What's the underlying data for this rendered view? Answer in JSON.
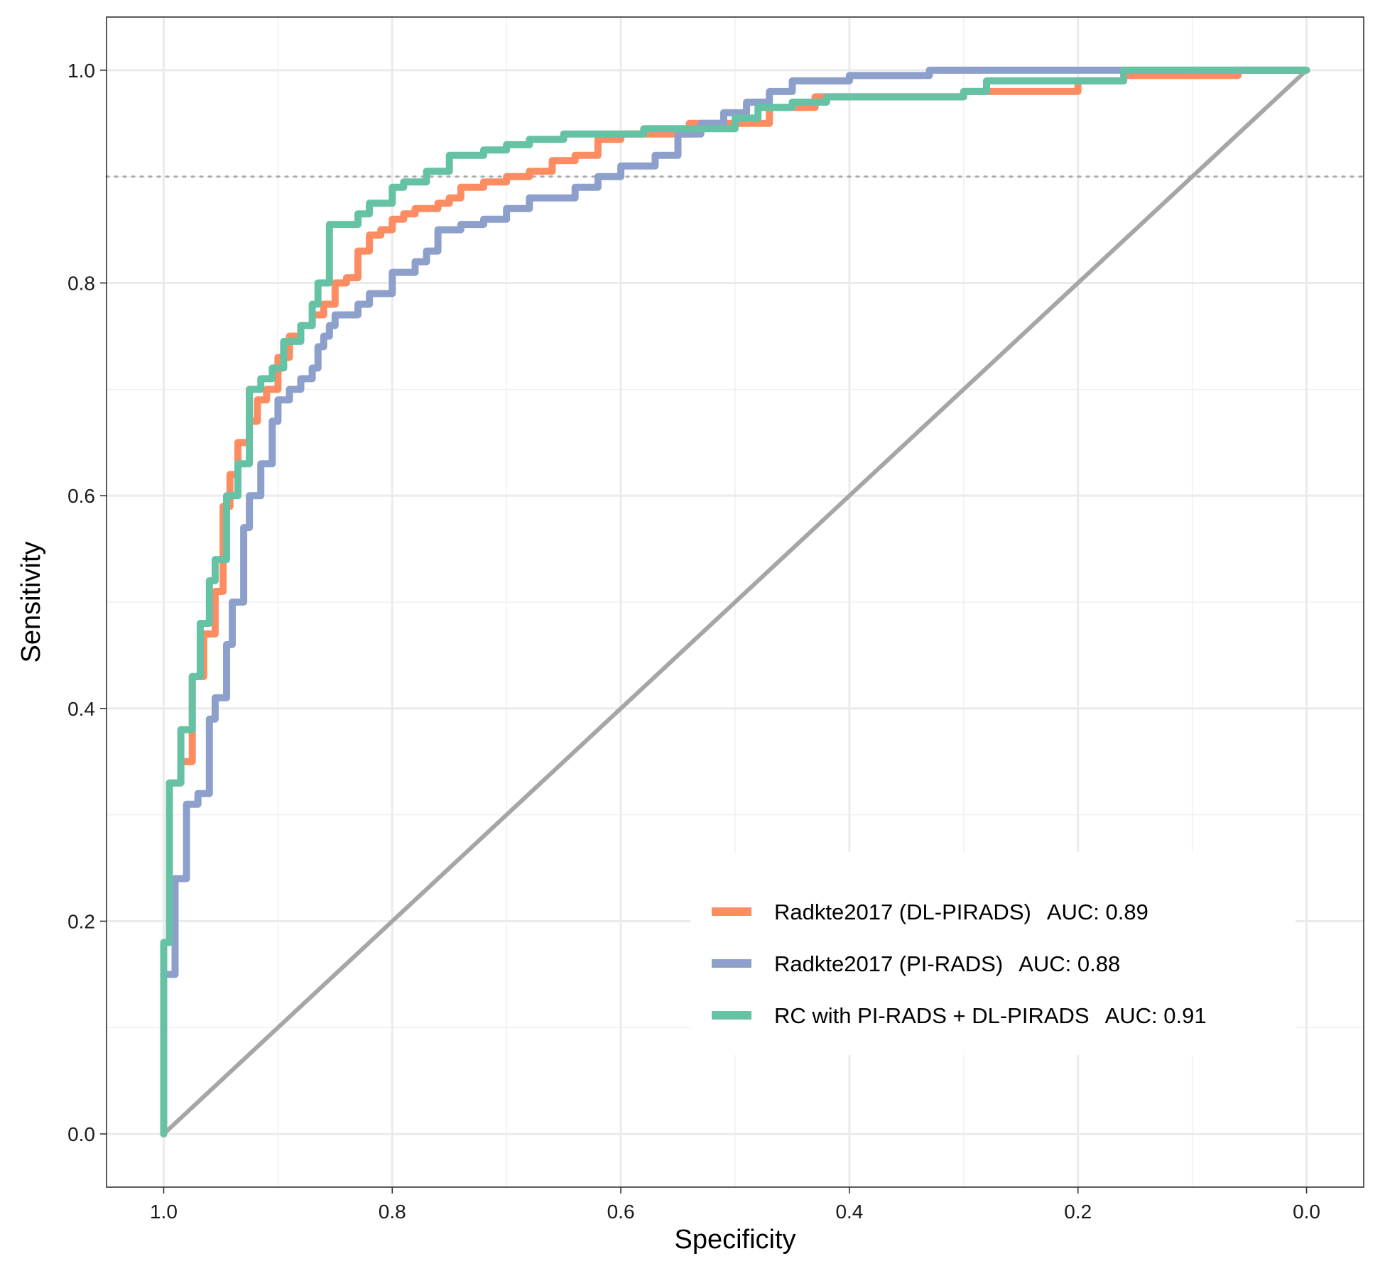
{
  "chart_data": {
    "type": "line",
    "xlabel": "Specificity",
    "ylabel": "Sensitivity",
    "xlim": [
      1.05,
      -0.05
    ],
    "ylim": [
      -0.05,
      1.05
    ],
    "x_reversed": true,
    "x_ticks": [
      1.0,
      0.8,
      0.6,
      0.4,
      0.2,
      0.0
    ],
    "x_tick_labels": [
      "1.0",
      "0.8",
      "0.6",
      "0.4",
      "0.2",
      "0.0"
    ],
    "y_ticks": [
      0.0,
      0.2,
      0.4,
      0.6,
      0.8,
      1.0
    ],
    "y_tick_labels": [
      "0.0",
      "0.2",
      "0.4",
      "0.6",
      "0.8",
      "1.0"
    ],
    "grid": true,
    "legend_position": "bottom-right",
    "reference_hline": {
      "y": 0.9,
      "style": "dotted",
      "color": "#aaaaaa"
    },
    "reference_diagonal": {
      "x": [
        1.0,
        0.0
      ],
      "y": [
        0.0,
        1.0
      ],
      "color": "#a6a6a6"
    },
    "series": [
      {
        "name": "Radkte2017 (DL-PIRADS)",
        "auc_label": "AUC: 0.89",
        "color": "#fc8d62",
        "x": [
          1.0,
          1.0,
          0.995,
          0.995,
          0.985,
          0.985,
          0.975,
          0.975,
          0.965,
          0.965,
          0.955,
          0.955,
          0.948,
          0.948,
          0.942,
          0.942,
          0.935,
          0.935,
          0.925,
          0.925,
          0.918,
          0.918,
          0.91,
          0.91,
          0.9,
          0.9,
          0.89,
          0.89,
          0.88,
          0.88,
          0.87,
          0.87,
          0.86,
          0.86,
          0.85,
          0.85,
          0.84,
          0.84,
          0.83,
          0.83,
          0.82,
          0.82,
          0.81,
          0.81,
          0.8,
          0.8,
          0.79,
          0.79,
          0.78,
          0.78,
          0.76,
          0.76,
          0.75,
          0.75,
          0.74,
          0.74,
          0.72,
          0.72,
          0.7,
          0.7,
          0.68,
          0.68,
          0.66,
          0.66,
          0.64,
          0.64,
          0.62,
          0.62,
          0.6,
          0.6,
          0.54,
          0.54,
          0.47,
          0.47,
          0.43,
          0.43,
          0.3,
          0.3,
          0.2,
          0.2,
          0.16,
          0.16,
          0.06,
          0.06,
          0.0
        ],
        "y": [
          0.0,
          0.18,
          0.18,
          0.33,
          0.33,
          0.35,
          0.35,
          0.43,
          0.43,
          0.47,
          0.47,
          0.51,
          0.51,
          0.59,
          0.59,
          0.62,
          0.62,
          0.65,
          0.65,
          0.67,
          0.67,
          0.69,
          0.69,
          0.7,
          0.7,
          0.73,
          0.73,
          0.75,
          0.75,
          0.76,
          0.76,
          0.77,
          0.77,
          0.78,
          0.78,
          0.8,
          0.8,
          0.805,
          0.805,
          0.83,
          0.83,
          0.845,
          0.845,
          0.85,
          0.85,
          0.86,
          0.86,
          0.865,
          0.865,
          0.87,
          0.87,
          0.875,
          0.875,
          0.88,
          0.88,
          0.89,
          0.89,
          0.895,
          0.895,
          0.9,
          0.9,
          0.905,
          0.905,
          0.915,
          0.915,
          0.92,
          0.92,
          0.935,
          0.935,
          0.94,
          0.94,
          0.95,
          0.95,
          0.965,
          0.965,
          0.975,
          0.975,
          0.98,
          0.98,
          0.99,
          0.99,
          0.995,
          0.995,
          1.0,
          1.0
        ]
      },
      {
        "name": "Radkte2017 (PI-RADS)",
        "auc_label": "AUC: 0.88",
        "color": "#8da0cb",
        "x": [
          1.0,
          1.0,
          0.99,
          0.99,
          0.98,
          0.98,
          0.97,
          0.97,
          0.96,
          0.96,
          0.955,
          0.955,
          0.945,
          0.945,
          0.94,
          0.94,
          0.93,
          0.93,
          0.925,
          0.925,
          0.915,
          0.915,
          0.905,
          0.905,
          0.9,
          0.9,
          0.89,
          0.89,
          0.88,
          0.88,
          0.87,
          0.87,
          0.865,
          0.865,
          0.86,
          0.86,
          0.855,
          0.855,
          0.85,
          0.85,
          0.83,
          0.83,
          0.82,
          0.82,
          0.8,
          0.8,
          0.78,
          0.78,
          0.77,
          0.77,
          0.76,
          0.76,
          0.74,
          0.74,
          0.72,
          0.72,
          0.7,
          0.7,
          0.68,
          0.68,
          0.64,
          0.64,
          0.62,
          0.62,
          0.6,
          0.6,
          0.57,
          0.57,
          0.55,
          0.55,
          0.53,
          0.53,
          0.51,
          0.51,
          0.49,
          0.49,
          0.47,
          0.47,
          0.45,
          0.45,
          0.4,
          0.4,
          0.33,
          0.33,
          0.15,
          0.15,
          0.0
        ],
        "y": [
          0.0,
          0.15,
          0.15,
          0.24,
          0.24,
          0.31,
          0.31,
          0.32,
          0.32,
          0.39,
          0.39,
          0.41,
          0.41,
          0.46,
          0.46,
          0.5,
          0.5,
          0.57,
          0.57,
          0.6,
          0.6,
          0.63,
          0.63,
          0.67,
          0.67,
          0.69,
          0.69,
          0.7,
          0.7,
          0.71,
          0.71,
          0.72,
          0.72,
          0.74,
          0.74,
          0.75,
          0.75,
          0.76,
          0.76,
          0.77,
          0.77,
          0.78,
          0.78,
          0.79,
          0.79,
          0.81,
          0.81,
          0.82,
          0.82,
          0.83,
          0.83,
          0.85,
          0.85,
          0.855,
          0.855,
          0.86,
          0.86,
          0.87,
          0.87,
          0.88,
          0.88,
          0.89,
          0.89,
          0.9,
          0.9,
          0.91,
          0.91,
          0.92,
          0.92,
          0.94,
          0.94,
          0.95,
          0.95,
          0.96,
          0.96,
          0.97,
          0.97,
          0.98,
          0.98,
          0.99,
          0.99,
          0.995,
          0.995,
          1.0,
          1.0,
          1.0,
          1.0
        ]
      },
      {
        "name": "RC with PI-RADS + DL-PIRADS",
        "auc_label": "AUC: 0.91",
        "color": "#66c2a5",
        "x": [
          1.0,
          1.0,
          0.995,
          0.995,
          0.985,
          0.985,
          0.975,
          0.975,
          0.968,
          0.968,
          0.96,
          0.96,
          0.955,
          0.955,
          0.945,
          0.945,
          0.935,
          0.935,
          0.925,
          0.925,
          0.915,
          0.915,
          0.905,
          0.905,
          0.895,
          0.895,
          0.88,
          0.88,
          0.87,
          0.87,
          0.865,
          0.865,
          0.855,
          0.855,
          0.83,
          0.83,
          0.82,
          0.82,
          0.8,
          0.8,
          0.79,
          0.79,
          0.77,
          0.77,
          0.75,
          0.75,
          0.72,
          0.72,
          0.7,
          0.7,
          0.68,
          0.68,
          0.65,
          0.65,
          0.58,
          0.58,
          0.5,
          0.5,
          0.48,
          0.48,
          0.45,
          0.45,
          0.42,
          0.42,
          0.3,
          0.3,
          0.28,
          0.28,
          0.16,
          0.16,
          0.0
        ],
        "y": [
          0.0,
          0.18,
          0.18,
          0.33,
          0.33,
          0.38,
          0.38,
          0.43,
          0.43,
          0.48,
          0.48,
          0.52,
          0.52,
          0.54,
          0.54,
          0.6,
          0.6,
          0.63,
          0.63,
          0.7,
          0.7,
          0.71,
          0.71,
          0.72,
          0.72,
          0.745,
          0.745,
          0.76,
          0.76,
          0.78,
          0.78,
          0.8,
          0.8,
          0.855,
          0.855,
          0.865,
          0.865,
          0.875,
          0.875,
          0.89,
          0.89,
          0.895,
          0.895,
          0.905,
          0.905,
          0.92,
          0.92,
          0.925,
          0.925,
          0.93,
          0.93,
          0.935,
          0.935,
          0.94,
          0.94,
          0.945,
          0.945,
          0.955,
          0.955,
          0.965,
          0.965,
          0.97,
          0.97,
          0.975,
          0.975,
          0.98,
          0.98,
          0.99,
          0.99,
          1.0,
          1.0
        ]
      }
    ]
  }
}
